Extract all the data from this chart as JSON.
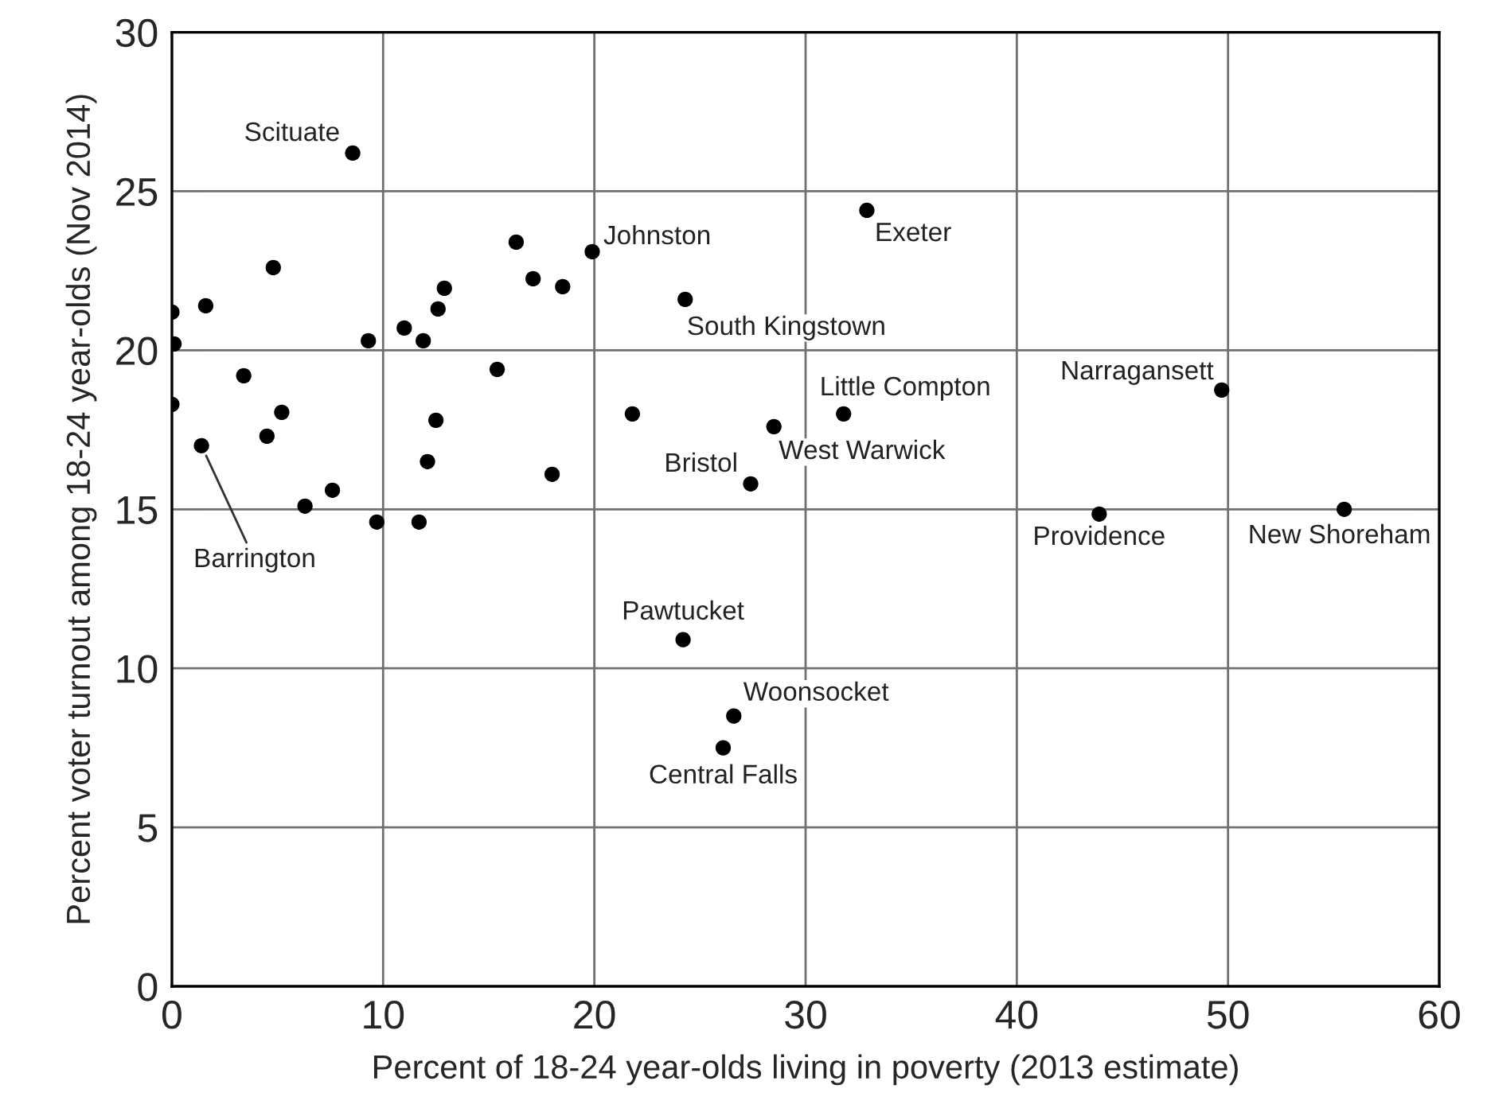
{
  "chart_data": {
    "type": "scatter",
    "xlabel": "Percent of 18-24 year-olds living in poverty (2013 estimate)",
    "ylabel": "Percent voter turnout among 18-24 year-olds (Nov 2014)",
    "x": [
      8.56,
      16.3,
      19.9,
      4.8,
      17.1,
      18.5,
      12.9,
      0,
      1.6,
      12.6,
      11.0,
      0.1,
      9.3,
      11.9,
      15.4,
      3.4,
      0,
      5.2,
      12.5,
      4.5,
      1.4,
      12.1,
      18.0,
      7.6,
      6.3,
      9.7,
      11.7,
      24.3,
      32.9,
      21.8,
      31.8,
      28.5,
      27.4,
      24.2,
      26.6,
      26.1,
      49.7,
      43.9,
      55.5
    ],
    "series": [
      {
        "color": "#000000",
        "values": [
          26.2,
          23.4,
          23.1,
          22.6,
          22.25,
          22.0,
          21.95,
          21.2,
          21.4,
          21.3,
          20.7,
          20.2,
          20.3,
          20.3,
          19.4,
          19.2,
          18.3,
          18.05,
          17.8,
          17.3,
          17.0,
          16.5,
          16.1,
          15.6,
          15.1,
          14.6,
          14.6,
          21.6,
          24.4,
          18.0,
          18.0,
          17.6,
          15.8,
          10.9,
          8.5,
          7.5,
          18.75,
          14.85,
          15.0
        ]
      }
    ],
    "xlim": [
      0,
      60
    ],
    "xticks": [
      0,
      10,
      20,
      30,
      40,
      50,
      60
    ],
    "ylim": [
      0,
      30
    ],
    "yticks": [
      0,
      5,
      10,
      15,
      20,
      25,
      30
    ],
    "grid": true,
    "marker": "circle",
    "annotations": [
      {
        "text": "Scituate",
        "x": 8.56,
        "y": 26.2
      },
      {
        "text": "Johnston",
        "x": 19.9,
        "y": 23.1
      },
      {
        "text": "Exeter",
        "x": 32.9,
        "y": 24.4
      },
      {
        "text": "South Kingstown",
        "x": 24.3,
        "y": 21.6
      },
      {
        "text": "Little Compton",
        "x": 31.8,
        "y": 18.0
      },
      {
        "text": "West Warwick",
        "x": 28.5,
        "y": 17.6
      },
      {
        "text": "Bristol",
        "x": 27.4,
        "y": 15.8
      },
      {
        "text": "Pawtucket",
        "x": 24.2,
        "y": 10.9
      },
      {
        "text": "Woonsocket",
        "x": 26.6,
        "y": 8.5
      },
      {
        "text": "Central Falls",
        "x": 26.1,
        "y": 7.5
      },
      {
        "text": "Narragansett",
        "x": 49.7,
        "y": 18.75
      },
      {
        "text": "Providence",
        "x": 43.9,
        "y": 14.85
      },
      {
        "text": "New Shoreham",
        "x": 55.5,
        "y": 15.0
      },
      {
        "text": "Barrington",
        "x": 1.4,
        "y": 17.0
      }
    ]
  }
}
